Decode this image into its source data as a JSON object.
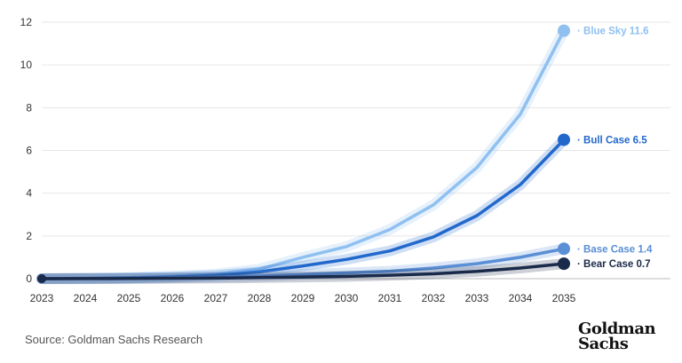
{
  "chart_data": {
    "type": "line",
    "x": [
      "2023",
      "2024",
      "2025",
      "2026",
      "2027",
      "2028",
      "2029",
      "2030",
      "2031",
      "2032",
      "2033",
      "2034",
      "2035"
    ],
    "yticks": [
      0,
      2,
      4,
      6,
      8,
      10,
      12
    ],
    "ylim": [
      0,
      12
    ],
    "grid": true,
    "legend": "end-of-line labels",
    "series": [
      {
        "name": "Blue Sky",
        "end_label": "· Blue Sky 11.6",
        "color": "#8fc0f0",
        "values": [
          0,
          0.02,
          0.06,
          0.12,
          0.22,
          0.45,
          1.0,
          1.5,
          2.3,
          3.45,
          5.2,
          7.7,
          11.6
        ]
      },
      {
        "name": "Bull Case",
        "end_label": "· Bull Case 6.5",
        "color": "#2268cc",
        "values": [
          0,
          0.01,
          0.03,
          0.07,
          0.15,
          0.32,
          0.6,
          0.9,
          1.3,
          1.95,
          2.95,
          4.4,
          6.5
        ]
      },
      {
        "name": "Base Case",
        "end_label": "· Base Case 1.4",
        "color": "#5a8fd6",
        "values": [
          0,
          0.01,
          0.02,
          0.04,
          0.07,
          0.12,
          0.2,
          0.27,
          0.35,
          0.5,
          0.7,
          1.0,
          1.4
        ]
      },
      {
        "name": "Bear Case",
        "end_label": "· Bear Case 0.7",
        "color": "#1a2a4a",
        "values": [
          0,
          0.005,
          0.01,
          0.02,
          0.03,
          0.05,
          0.08,
          0.11,
          0.16,
          0.23,
          0.34,
          0.5,
          0.7
        ]
      }
    ]
  },
  "footer": {
    "source": "Source: Goldman Sachs Research",
    "logo_line1": "Goldman",
    "logo_line2": "Sachs"
  }
}
